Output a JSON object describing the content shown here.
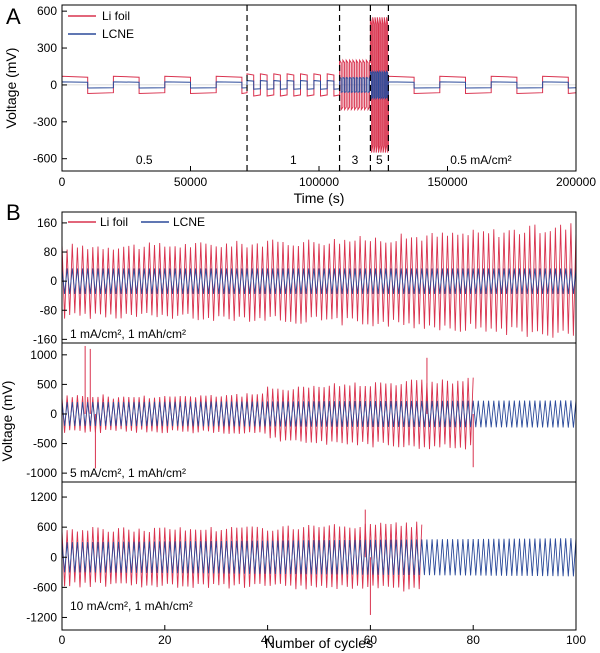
{
  "figure": {
    "panel_a_label": "A",
    "panel_b_label": "B",
    "ylabel_shared_b": "Voltage (mV)"
  },
  "colors": {
    "li_foil": "#d9334f",
    "lcne": "#2b4a9a"
  },
  "chart_data": [
    {
      "id": "A",
      "type": "line",
      "xlabel": "Time (s)",
      "ylabel": "Voltage (mV)",
      "xlim": [
        0,
        200000
      ],
      "ylim": [
        -700,
        650
      ],
      "xticks": [
        0,
        50000,
        100000,
        150000,
        200000
      ],
      "xtick_labels": [
        "0",
        "50000",
        "100000",
        "150000",
        "200000"
      ],
      "yticks": [
        -600,
        -300,
        0,
        300,
        600
      ],
      "ytick_labels": [
        "-600",
        "-300",
        "0",
        "300",
        "600"
      ],
      "legend": [
        "Li foil",
        "LCNE"
      ],
      "legend_position": "top-left",
      "dividers_x": [
        72000,
        108000,
        120000,
        127000
      ],
      "region_labels": [
        {
          "text": "0.5",
          "x": 32000
        },
        {
          "text": "1",
          "x": 90000
        },
        {
          "text": "3",
          "x": 114000
        },
        {
          "text": "5",
          "x": 123500
        },
        {
          "text": "0.5 mA/cm²",
          "x": 163000
        }
      ],
      "segments": [
        {
          "x_start": 0,
          "x_end": 72000,
          "current_density_mA_cm2": 0.5,
          "li_foil_amp_mV": 70,
          "lcne_amp_mV": 25
        },
        {
          "x_start": 72000,
          "x_end": 108000,
          "current_density_mA_cm2": 1,
          "li_foil_amp_mV": 90,
          "lcne_amp_mV": 35
        },
        {
          "x_start": 108000,
          "x_end": 120000,
          "current_density_mA_cm2": 3,
          "li_foil_amp_mV": 200,
          "lcne_amp_mV": 60
        },
        {
          "x_start": 120000,
          "x_end": 127000,
          "current_density_mA_cm2": 5,
          "li_foil_amp_mV": 550,
          "lcne_amp_mV": 110
        },
        {
          "x_start": 127000,
          "x_end": 200000,
          "current_density_mA_cm2": 0.5,
          "li_foil_amp_mV": 70,
          "lcne_amp_mV": 25
        }
      ],
      "series": [
        {
          "name": "Li foil"
        },
        {
          "name": "LCNE"
        }
      ]
    },
    {
      "id": "B1",
      "type": "line",
      "ylim": [
        -170,
        190
      ],
      "yticks": [
        -160,
        -80,
        0,
        80,
        160
      ],
      "ytick_labels": [
        "-160",
        "-80",
        "0",
        "80",
        "160"
      ],
      "legend": [
        "Li foil",
        "LCNE"
      ],
      "legend_position": "top",
      "annotation": "1 mA/cm², 1 mAh/cm²",
      "series": [
        {
          "name": "Li foil",
          "cycles": [
            0,
            100
          ],
          "amp_start_mV": 95,
          "amp_end_mV": 150
        },
        {
          "name": "LCNE",
          "cycles": [
            0,
            100
          ],
          "amp_start_mV": 35,
          "amp_end_mV": 35
        }
      ]
    },
    {
      "id": "B2",
      "type": "line",
      "ylim": [
        -1150,
        1200
      ],
      "yticks": [
        -1000,
        -500,
        0,
        500,
        1000
      ],
      "ytick_labels": [
        "-1000",
        "-500",
        "0",
        "500",
        "1000"
      ],
      "annotation": "5 mA/cm², 1 mAh/cm²",
      "series": [
        {
          "name": "Li foil",
          "cycles": [
            0,
            80
          ],
          "amp_start_mV": 300,
          "amp_peak_mV": 650,
          "spikes_mV": [
            1150,
            1100,
            -920,
            950,
            -900
          ]
        },
        {
          "name": "LCNE",
          "cycles": [
            0,
            100
          ],
          "amp_start_mV": 200,
          "amp_end_mV": 230
        }
      ]
    },
    {
      "id": "B3",
      "type": "line",
      "xlabel": "Number of cycles",
      "xlim": [
        0,
        100
      ],
      "xticks": [
        0,
        20,
        40,
        60,
        80,
        100
      ],
      "xtick_labels": [
        "0",
        "20",
        "40",
        "60",
        "80",
        "100"
      ],
      "ylim": [
        -1450,
        1500
      ],
      "yticks": [
        -1200,
        -600,
        0,
        600,
        1200
      ],
      "ytick_labels": [
        "-1200",
        "-600",
        "0",
        "600",
        "1200"
      ],
      "annotation": "10 mA/cm², 1 mAh/cm²",
      "series": [
        {
          "name": "Li foil",
          "cycles": [
            0,
            70
          ],
          "amp_start_mV": 550,
          "amp_end_mV": 650,
          "spikes_mV": [
            950,
            -1150
          ]
        },
        {
          "name": "LCNE",
          "cycles": [
            0,
            100
          ],
          "amp_start_mV": 300,
          "amp_end_mV": 380
        }
      ]
    }
  ]
}
